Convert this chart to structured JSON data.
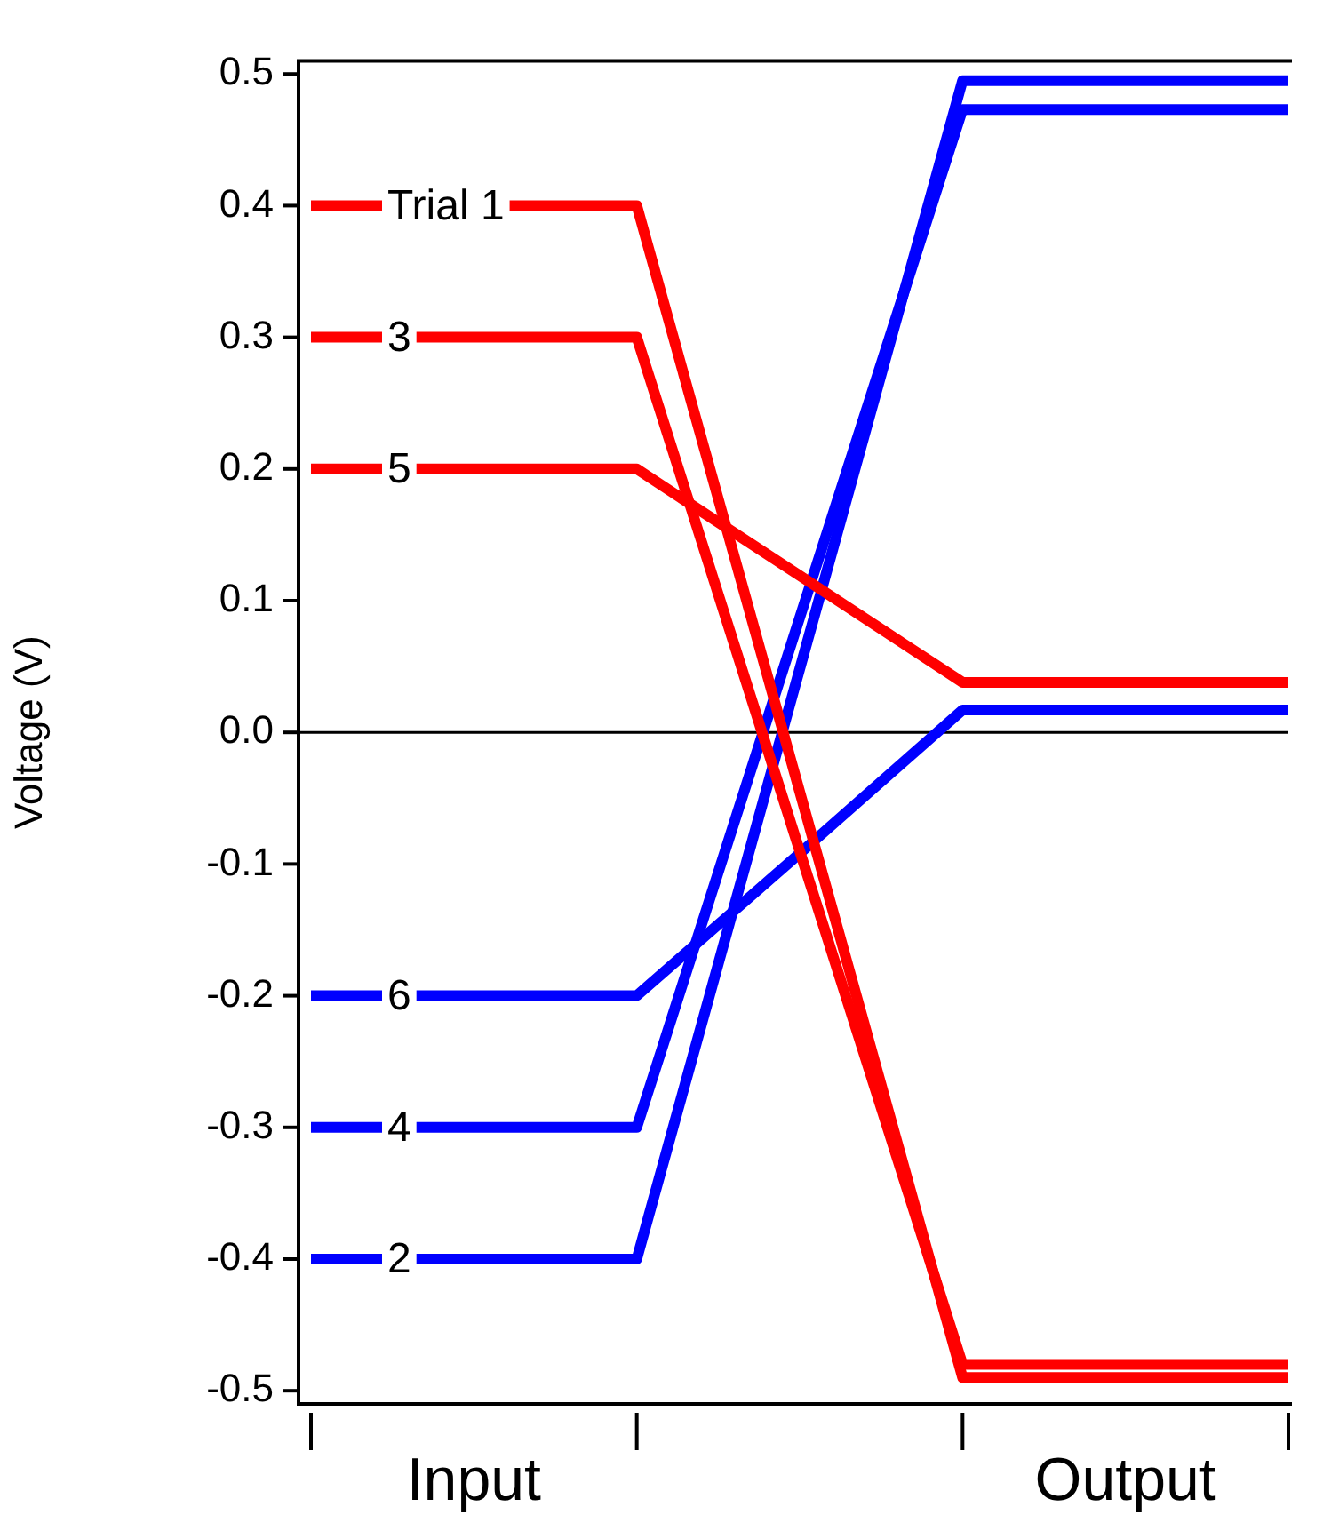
{
  "chart_data": {
    "type": "line",
    "ylabel": "Voltage (V)",
    "categories": [
      null,
      "Input",
      null,
      null,
      null,
      "Output",
      null
    ],
    "ylim": [
      -0.51,
      0.51
    ],
    "yticks": [
      -0.5,
      -0.4,
      -0.3,
      -0.2,
      -0.1,
      {
        "value": 0,
        "label": "0.0"
      },
      0.1,
      0.2,
      0.3,
      0.4,
      0.5
    ],
    "grid": false,
    "legend": false,
    "marker": "none",
    "line_style": "solid",
    "ref_lines": [
      {
        "axis": "y",
        "value": 0,
        "color": "#000000"
      }
    ],
    "series": [
      {
        "name": "Trial 1",
        "color": "#ff0000",
        "values": [
          0.4,
          null,
          0.4,
          -0.045,
          -0.49,
          -0.49,
          -0.49
        ]
      },
      {
        "name": "3",
        "color": "#ff0000",
        "values": [
          0.3,
          0.3,
          0.3,
          -0.09,
          -0.48,
          -0.48,
          -0.48
        ]
      },
      {
        "name": "5",
        "color": "#ff0000",
        "values": [
          0.2,
          0.2,
          0.2,
          0.119,
          0.038,
          0.038,
          0.038
        ]
      },
      {
        "name": "6",
        "color": "#0000ff",
        "values": [
          -0.2,
          -0.2,
          -0.2,
          -0.092,
          0.017,
          0.017,
          0.017
        ]
      },
      {
        "name": "4",
        "color": "#0000ff",
        "values": [
          -0.3,
          -0.3,
          -0.3,
          0.087,
          0.473,
          0.473,
          0.473
        ]
      },
      {
        "name": "2",
        "color": "#0000ff",
        "values": [
          -0.4,
          -0.4,
          -0.4,
          0.048,
          0.495,
          0.495,
          0.495
        ]
      }
    ]
  }
}
